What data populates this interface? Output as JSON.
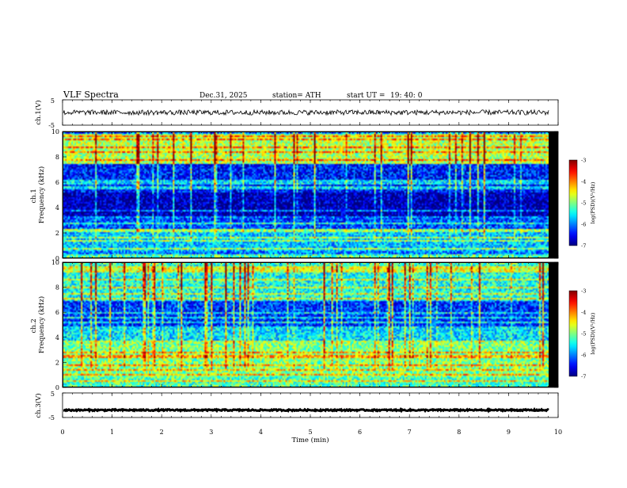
{
  "header": {
    "title": "VLF  Spectra",
    "date": "Dec.31, 2025",
    "station": "station= ATH",
    "start_label": "start  UT  =",
    "start_time": "19: 40: 0"
  },
  "chart_data": [
    {
      "type": "line",
      "name": "ch1-waveform",
      "ylabel": "ch.1(V)",
      "ylim": [
        -5,
        5
      ],
      "y_ticks": [
        "5",
        "-5"
      ],
      "xlim": [
        0,
        10
      ],
      "approx_center": 0,
      "approx_amplitude": 1
    },
    {
      "type": "heatmap",
      "name": "ch1-spectrogram",
      "ylabel": "ch.1\nFrequency  (kHz)",
      "ylim": [
        0,
        10
      ],
      "y_ticks": [
        "0",
        "2",
        "4",
        "6",
        "8",
        "10"
      ],
      "xlim": [
        0,
        10
      ],
      "data_end_min": 9.8,
      "colorbar": {
        "label": "log(PSD)(V²/Hz)",
        "range": [
          -7,
          -3
        ],
        "ticks": [
          "-3",
          "-4",
          "-5",
          "-6",
          "-7"
        ],
        "colormap": "jet"
      },
      "bands_khz": [
        {
          "from": 0,
          "to": 0.6,
          "level": -6
        },
        {
          "from": 0.6,
          "to": 2.4,
          "level": -5.7
        },
        {
          "from": 2.4,
          "to": 3.2,
          "level": -6.2
        },
        {
          "from": 3.2,
          "to": 5.3,
          "level": -6.8
        },
        {
          "from": 5.3,
          "to": 7.5,
          "level": -6.4
        },
        {
          "from": 7.5,
          "to": 10,
          "level": -4.8
        }
      ]
    },
    {
      "type": "heatmap",
      "name": "ch2-spectrogram",
      "ylabel": "ch.2\nFrequency  (kHz)",
      "ylim": [
        0,
        10
      ],
      "y_ticks": [
        "0",
        "2",
        "4",
        "6",
        "8",
        "10"
      ],
      "xlim": [
        0,
        10
      ],
      "data_end_min": 9.8,
      "colorbar": {
        "label": "log(PSD)(V²/Hz)",
        "range": [
          -7,
          -3
        ],
        "ticks": [
          "-3",
          "-4",
          "-5",
          "-6",
          "-7"
        ],
        "colormap": "jet"
      },
      "bands_khz": [
        {
          "from": 0,
          "to": 0.8,
          "level": -5.2
        },
        {
          "from": 0.8,
          "to": 3.6,
          "level": -5.0
        },
        {
          "from": 3.6,
          "to": 5.0,
          "level": -5.6
        },
        {
          "from": 5.0,
          "to": 7.0,
          "level": -6.3
        },
        {
          "from": 7.0,
          "to": 10,
          "level": -5.4
        }
      ]
    },
    {
      "type": "line",
      "name": "ch3-waveform",
      "ylabel": "ch.3(V)",
      "ylim": [
        -5,
        5
      ],
      "y_ticks": [
        "5",
        "-5"
      ],
      "xlim": [
        0,
        10
      ],
      "approx_center": -2,
      "approx_amplitude": 0.3
    }
  ],
  "x_axis": {
    "label": "Time  (min)",
    "ticks": [
      "0",
      "1",
      "2",
      "3",
      "4",
      "5",
      "6",
      "7",
      "8",
      "9",
      "10"
    ]
  },
  "colors": {
    "axis": "#000000",
    "trace": "#000000"
  }
}
